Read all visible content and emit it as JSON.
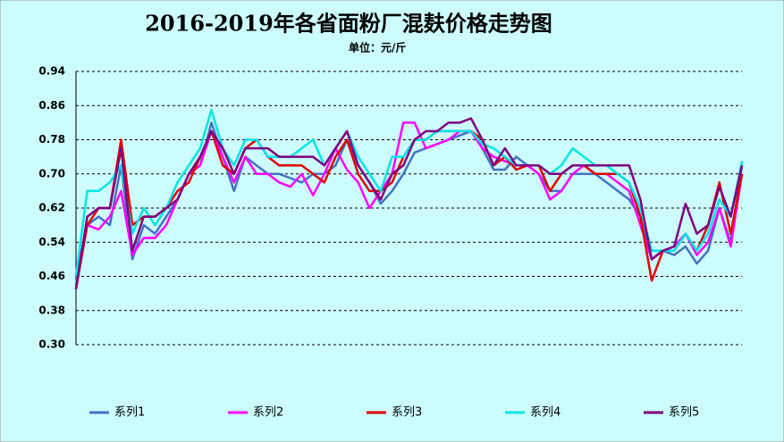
{
  "chart_data": {
    "type": "line",
    "title": "2016-2019年各省面粉厂混麸价格走势图",
    "subtitle": "单位：元/斤",
    "categories": [
      null,
      null,
      null,
      null,
      null,
      null,
      null,
      null,
      null,
      null,
      null,
      null,
      null,
      null,
      null,
      null,
      null,
      null,
      null,
      null,
      null,
      null,
      null,
      null,
      null,
      null,
      null,
      null,
      null,
      null,
      null,
      null,
      null,
      null,
      null,
      null,
      null,
      null,
      null,
      null,
      null,
      null,
      null,
      null,
      null,
      null,
      null,
      null,
      null,
      null,
      null,
      null,
      null,
      null,
      null,
      null,
      null,
      null,
      null,
      null
    ],
    "ylim": [
      0.3,
      0.94
    ],
    "yticks": [
      {
        "value": 0.3,
        "label": "0.30"
      },
      0.38,
      0.46,
      0.54,
      0.62,
      {
        "value": 0.7,
        "label": "0.70"
      },
      0.78,
      0.86,
      0.94
    ],
    "grid": true,
    "legend": "bottom",
    "series": [
      {
        "name": "系列1",
        "color": "#4472c4",
        "values": [
          0.44,
          0.58,
          0.6,
          0.58,
          0.72,
          0.5,
          0.58,
          0.56,
          0.6,
          0.64,
          0.7,
          0.72,
          0.82,
          0.74,
          0.66,
          0.74,
          0.72,
          0.7,
          0.7,
          0.69,
          0.68,
          0.7,
          0.7,
          0.72,
          0.78,
          0.72,
          0.68,
          0.63,
          0.66,
          0.7,
          0.75,
          0.76,
          0.77,
          0.78,
          0.79,
          0.8,
          0.76,
          0.71,
          0.71,
          0.74,
          0.72,
          0.7,
          0.66,
          0.66,
          0.7,
          0.7,
          0.7,
          0.68,
          0.66,
          0.64,
          0.6,
          0.5,
          0.52,
          0.51,
          0.53,
          0.49,
          0.52,
          0.62,
          0.54,
          0.72
        ]
      },
      {
        "name": "系列2",
        "color": "#ff00ff",
        "values": [
          0.46,
          0.58,
          0.57,
          0.6,
          0.66,
          0.51,
          0.55,
          0.55,
          0.58,
          0.64,
          0.7,
          0.72,
          0.8,
          0.74,
          0.68,
          0.74,
          0.7,
          0.7,
          0.68,
          0.67,
          0.7,
          0.65,
          0.7,
          0.76,
          0.71,
          0.68,
          0.62,
          0.66,
          0.7,
          0.82,
          0.82,
          0.76,
          0.77,
          0.78,
          0.8,
          0.8,
          0.76,
          0.74,
          0.73,
          0.72,
          0.72,
          0.7,
          0.64,
          0.66,
          0.7,
          0.72,
          0.7,
          0.7,
          0.68,
          0.66,
          0.58,
          0.5,
          0.52,
          0.53,
          0.56,
          0.51,
          0.54,
          0.62,
          0.53,
          0.7
        ]
      },
      {
        "name": "系列3",
        "color": "#e00000",
        "values": [
          0.43,
          0.58,
          0.62,
          0.62,
          0.78,
          0.58,
          0.6,
          0.6,
          0.62,
          0.66,
          0.68,
          0.74,
          0.8,
          0.72,
          0.7,
          0.76,
          0.78,
          0.74,
          0.72,
          0.72,
          0.72,
          0.7,
          0.68,
          0.74,
          0.78,
          0.7,
          0.66,
          0.66,
          0.68,
          0.74,
          0.78,
          0.78,
          0.8,
          0.8,
          0.8,
          0.8,
          0.78,
          0.72,
          0.74,
          0.71,
          0.72,
          0.72,
          0.66,
          0.7,
          0.72,
          0.72,
          0.7,
          0.7,
          0.7,
          0.68,
          0.6,
          0.45,
          0.52,
          0.52,
          0.56,
          0.52,
          0.58,
          0.68,
          0.56,
          0.7
        ]
      },
      {
        "name": "系列4",
        "color": "#00e5e5",
        "values": [
          0.46,
          0.66,
          0.66,
          0.68,
          0.72,
          0.56,
          0.62,
          0.58,
          0.62,
          0.68,
          0.72,
          0.76,
          0.85,
          0.76,
          0.72,
          0.78,
          0.78,
          0.74,
          0.74,
          0.74,
          0.76,
          0.78,
          0.72,
          0.76,
          0.8,
          0.74,
          0.7,
          0.66,
          0.74,
          0.74,
          0.78,
          0.78,
          0.8,
          0.8,
          0.8,
          0.8,
          0.77,
          0.76,
          0.74,
          0.72,
          0.72,
          0.72,
          0.7,
          0.72,
          0.76,
          0.74,
          0.72,
          0.72,
          0.7,
          0.68,
          0.62,
          0.52,
          0.52,
          0.52,
          0.56,
          0.52,
          0.56,
          0.64,
          0.6,
          0.73
        ]
      },
      {
        "name": "系列5",
        "color": "#800080",
        "values": [
          0.43,
          0.6,
          0.62,
          0.62,
          0.76,
          0.52,
          0.6,
          0.6,
          0.62,
          0.64,
          0.7,
          0.74,
          0.8,
          0.76,
          0.7,
          0.76,
          0.76,
          0.76,
          0.74,
          0.74,
          0.74,
          0.74,
          0.72,
          0.76,
          0.8,
          0.72,
          0.68,
          0.64,
          0.7,
          0.72,
          0.78,
          0.8,
          0.8,
          0.82,
          0.82,
          0.83,
          0.78,
          0.72,
          0.76,
          0.72,
          0.72,
          0.72,
          0.7,
          0.7,
          0.72,
          0.72,
          0.72,
          0.72,
          0.72,
          0.72,
          0.64,
          0.5,
          0.52,
          0.53,
          0.63,
          0.56,
          0.58,
          0.67,
          0.6,
          0.72
        ]
      }
    ]
  }
}
